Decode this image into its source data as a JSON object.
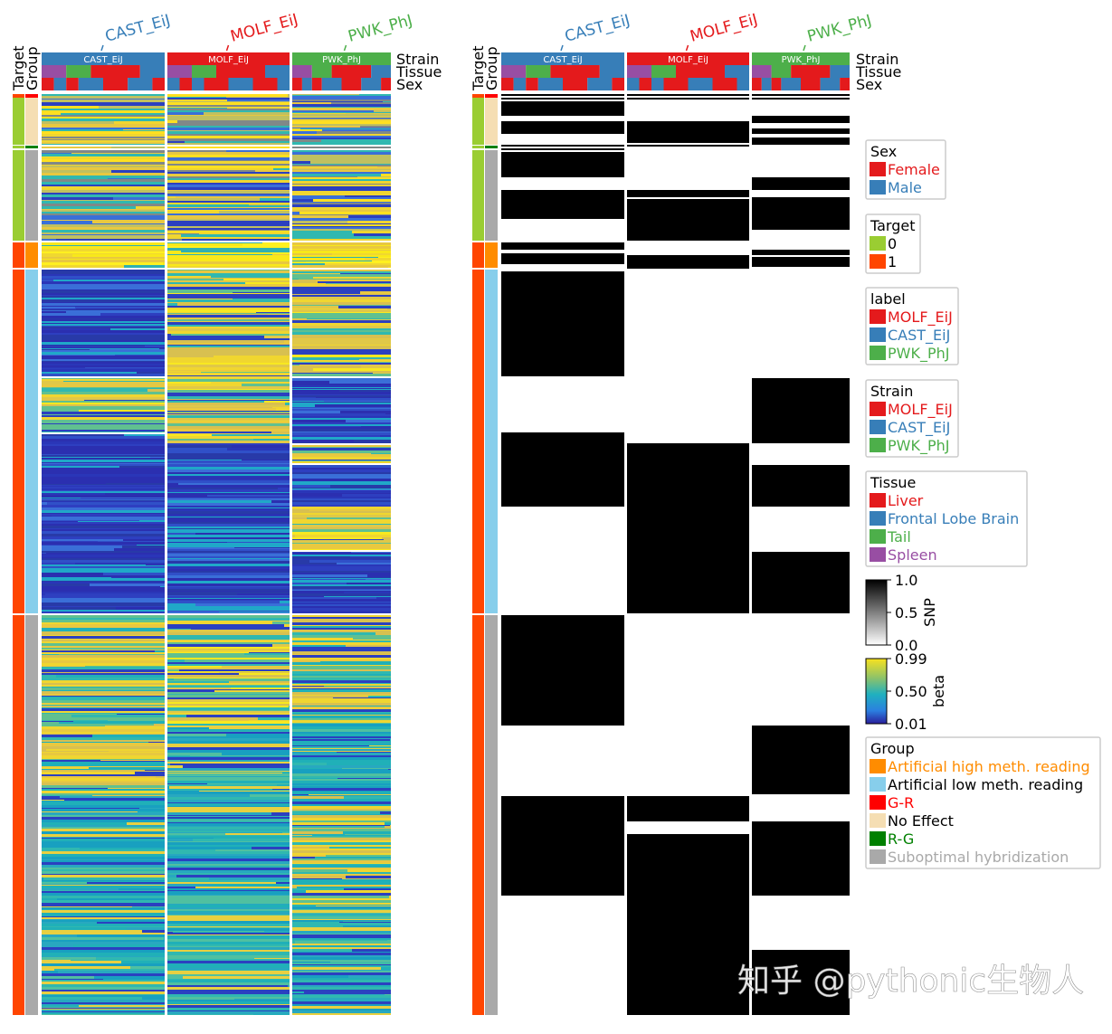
{
  "column_groups": [
    "CAST_EiJ",
    "MOLF_EiJ",
    "PWK_PhJ"
  ],
  "row_annotation_names": [
    "Target",
    "Group"
  ],
  "col_annotation_names": [
    "Strain",
    "Tissue",
    "Sex"
  ],
  "legends": [
    {
      "title": "Sex",
      "items": [
        {
          "label": "Female",
          "color": "#e41a1c",
          "text_color": "#e41a1c"
        },
        {
          "label": "Male",
          "color": "#377eb8",
          "text_color": "#377eb8"
        }
      ]
    },
    {
      "title": "Target",
      "items": [
        {
          "label": "0",
          "color": "#9acd32",
          "text_color": "#000000"
        },
        {
          "label": "1",
          "color": "#ff4500",
          "text_color": "#000000"
        }
      ]
    },
    {
      "title": "label",
      "items": [
        {
          "label": "MOLF_EiJ",
          "color": "#e41a1c",
          "text_color": "#e41a1c"
        },
        {
          "label": "CAST_EiJ",
          "color": "#377eb8",
          "text_color": "#377eb8"
        },
        {
          "label": "PWK_PhJ",
          "color": "#4daf4a",
          "text_color": "#4daf4a"
        }
      ]
    },
    {
      "title": "Strain",
      "items": [
        {
          "label": "MOLF_EiJ",
          "color": "#e41a1c",
          "text_color": "#e41a1c"
        },
        {
          "label": "CAST_EiJ",
          "color": "#377eb8",
          "text_color": "#377eb8"
        },
        {
          "label": "PWK_PhJ",
          "color": "#4daf4a",
          "text_color": "#4daf4a"
        }
      ]
    },
    {
      "title": "Tissue",
      "items": [
        {
          "label": "Liver",
          "color": "#e41a1c",
          "text_color": "#e41a1c"
        },
        {
          "label": "Frontal Lobe Brain",
          "color": "#377eb8",
          "text_color": "#377eb8"
        },
        {
          "label": "Tail",
          "color": "#4daf4a",
          "text_color": "#4daf4a"
        },
        {
          "label": "Spleen",
          "color": "#984ea3",
          "text_color": "#984ea3"
        }
      ]
    },
    {
      "title": "Group",
      "items": [
        {
          "label": "Artificial high meth. reading",
          "color": "#ff8c00",
          "text_color": "#ff8c00"
        },
        {
          "label": "Artificial low meth. reading",
          "color": "#87ceeb",
          "text_color": "#000000"
        },
        {
          "label": "G-R",
          "color": "#ff0000",
          "text_color": "#ff0000"
        },
        {
          "label": "No Effect",
          "color": "#f5deb3",
          "text_color": "#000000"
        },
        {
          "label": "R-G",
          "color": "#008000",
          "text_color": "#008000"
        },
        {
          "label": "Suboptimal hybridization",
          "color": "#a9a9a9",
          "text_color": "#a9a9a9"
        }
      ]
    }
  ],
  "colorbars": [
    {
      "label": "SNP",
      "lim": [
        0,
        1
      ],
      "ticks": [
        {
          "value": 1,
          "label": "1.0"
        },
        0.5,
        {
          "value": 0,
          "label": "0.0"
        }
      ]
    },
    {
      "label": "beta",
      "lim": [
        0.01,
        0.99
      ],
      "ticks": [
        0.99,
        {
          "value": 0.5,
          "label": "0.50"
        },
        0.01
      ]
    }
  ],
  "watermark": "知乎 @pythonic生物人"
}
